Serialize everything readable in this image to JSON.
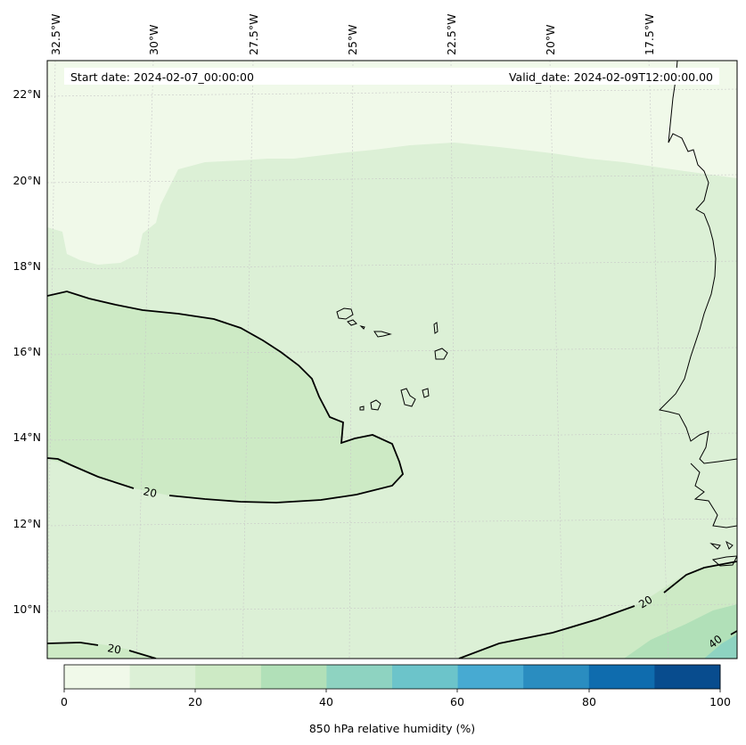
{
  "header": {
    "start_date": "Start date: 2024-02-07_00:00:00",
    "valid_date": "Valid_date: 2024-02-09T12:00:00.00"
  },
  "map": {
    "longitude_labels": [
      "32.5°W",
      "30°W",
      "27.5°W",
      "25°W",
      "22.5°W",
      "20°W",
      "17.5°W"
    ],
    "latitude_labels": [
      "22°N",
      "20°N",
      "18°N",
      "16°N",
      "14°N",
      "12°N",
      "10°N"
    ],
    "contour_labels": [
      "20",
      "20",
      "20",
      "40"
    ],
    "field": "850 hPa relative humidity (%)"
  },
  "colorbar": {
    "label": "850 hPa relative humidity (%)",
    "ticks": [
      "0",
      "20",
      "40",
      "60",
      "80",
      "100"
    ],
    "colors": [
      "#f0f9e9",
      "#dcf0d6",
      "#cdeac5",
      "#b1e0b8",
      "#8ed3c1",
      "#6cc4ca",
      "#47aad2",
      "#2a8dc0",
      "#0f6cae",
      "#084c8e"
    ]
  }
}
